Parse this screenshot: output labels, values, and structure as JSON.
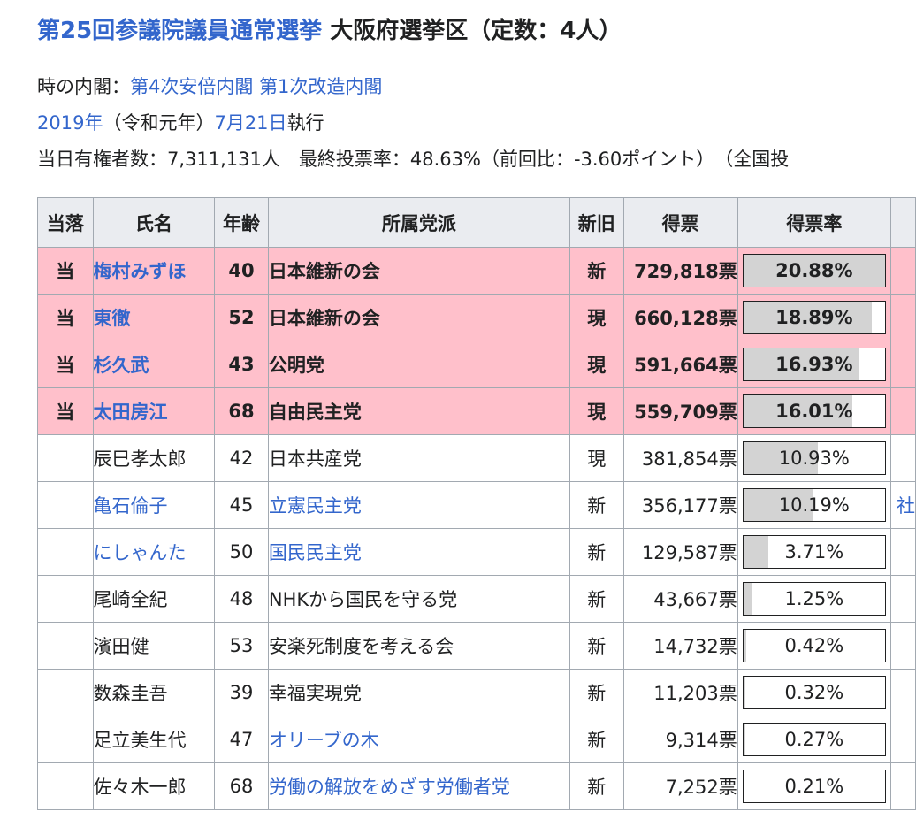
{
  "title": {
    "link": "第25回参議院議員通常選挙",
    "rest": " 大阪府選挙区（定数：4人）"
  },
  "info": {
    "cabinet_label": "時の内閣：",
    "cabinet_link": "第4次安倍内閣 第1次改造内閣",
    "year_link": "2019年",
    "era": "（令和元年）",
    "date_link": "7月21日",
    "date_suffix": "執行",
    "voters_text": "当日有権者数：7,311,131人　最終投票率：48.63%（前回比：-3.60ポイント）　（全国投"
  },
  "table": {
    "headers": [
      "当落",
      "氏名",
      "年齢",
      "所属党派",
      "新旧",
      "得票",
      "得票率"
    ],
    "rows": [
      {
        "result": "当",
        "name": "梅村みずほ",
        "age": "40",
        "party": "日本維新の会",
        "status": "新",
        "votes": "729,818票",
        "rate": "20.88%",
        "rate_value": 20.88,
        "elected": true,
        "name_link": true,
        "party_link": false,
        "extra": ""
      },
      {
        "result": "当",
        "name": "東徹",
        "age": "52",
        "party": "日本維新の会",
        "status": "現",
        "votes": "660,128票",
        "rate": "18.89%",
        "rate_value": 18.89,
        "elected": true,
        "name_link": true,
        "party_link": false,
        "extra": ""
      },
      {
        "result": "当",
        "name": "杉久武",
        "age": "43",
        "party": "公明党",
        "status": "現",
        "votes": "591,664票",
        "rate": "16.93%",
        "rate_value": 16.93,
        "elected": true,
        "name_link": true,
        "party_link": false,
        "extra": ""
      },
      {
        "result": "当",
        "name": "太田房江",
        "age": "68",
        "party": "自由民主党",
        "status": "現",
        "votes": "559,709票",
        "rate": "16.01%",
        "rate_value": 16.01,
        "elected": true,
        "name_link": true,
        "party_link": false,
        "extra": ""
      },
      {
        "result": "",
        "name": "辰巳孝太郎",
        "age": "42",
        "party": "日本共産党",
        "status": "現",
        "votes": "381,854票",
        "rate": "10.93%",
        "rate_value": 10.93,
        "elected": false,
        "name_link": false,
        "party_link": false,
        "extra": ""
      },
      {
        "result": "",
        "name": "亀石倫子",
        "age": "45",
        "party": "立憲民主党",
        "status": "新",
        "votes": "356,177票",
        "rate": "10.19%",
        "rate_value": 10.19,
        "elected": false,
        "name_link": true,
        "party_link": true,
        "extra": "社"
      },
      {
        "result": "",
        "name": "にしゃんた",
        "age": "50",
        "party": "国民民主党",
        "status": "新",
        "votes": "129,587票",
        "rate": "3.71%",
        "rate_value": 3.71,
        "elected": false,
        "name_link": true,
        "party_link": true,
        "extra": ""
      },
      {
        "result": "",
        "name": "尾崎全紀",
        "age": "48",
        "party": "NHKから国民を守る党",
        "status": "新",
        "votes": "43,667票",
        "rate": "1.25%",
        "rate_value": 1.25,
        "elected": false,
        "name_link": false,
        "party_link": false,
        "extra": ""
      },
      {
        "result": "",
        "name": "濱田健",
        "age": "53",
        "party": "安楽死制度を考える会",
        "status": "新",
        "votes": "14,732票",
        "rate": "0.42%",
        "rate_value": 0.42,
        "elected": false,
        "name_link": false,
        "party_link": false,
        "extra": ""
      },
      {
        "result": "",
        "name": "数森圭吾",
        "age": "39",
        "party": "幸福実現党",
        "status": "新",
        "votes": "11,203票",
        "rate": "0.32%",
        "rate_value": 0.32,
        "elected": false,
        "name_link": false,
        "party_link": false,
        "extra": ""
      },
      {
        "result": "",
        "name": "足立美生代",
        "age": "47",
        "party": "オリーブの木",
        "status": "新",
        "votes": "9,314票",
        "rate": "0.27%",
        "rate_value": 0.27,
        "elected": false,
        "name_link": false,
        "party_link": true,
        "extra": ""
      },
      {
        "result": "",
        "name": "佐々木一郎",
        "age": "68",
        "party": "労働の解放をめざす労働者党",
        "status": "新",
        "votes": "7,252票",
        "rate": "0.21%",
        "rate_value": 0.21,
        "elected": false,
        "name_link": false,
        "party_link": true,
        "extra": ""
      }
    ]
  },
  "colors": {
    "link": "#3366cc",
    "elected_bg": "#ffc0cb",
    "header_bg": "#eaecf0",
    "bar_fill": "#d3d3d3",
    "border": "#a2a9b1"
  }
}
